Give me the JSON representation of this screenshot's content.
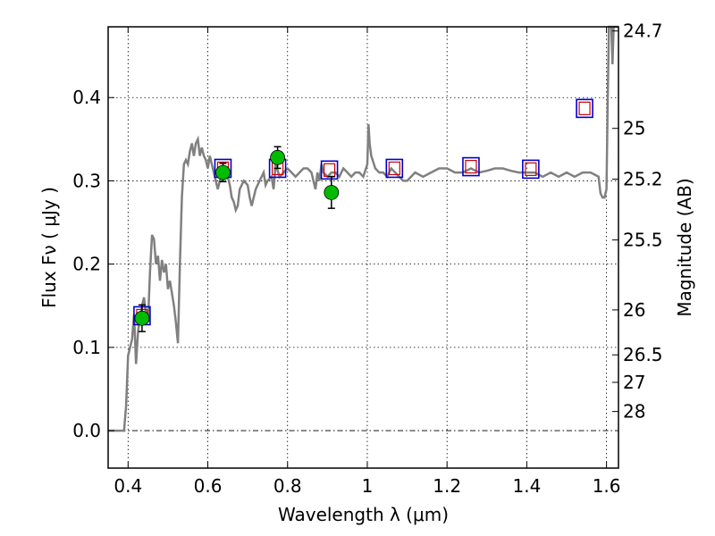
{
  "chart_data": {
    "type": "line",
    "xlabel": "Wavelength  λ (μm)",
    "ylabel": "Flux  Fν  ( μJy )",
    "ylabel_right": "Magnitude (AB)",
    "xlim": [
      0.35,
      1.63
    ],
    "ylim": [
      -0.045,
      0.485
    ],
    "grid": true,
    "x_ticks": [
      {
        "value": 0.4,
        "label": "0.4"
      },
      {
        "value": 0.6,
        "label": "0.6"
      },
      {
        "value": 0.8,
        "label": "0.8"
      },
      {
        "value": 1.0,
        "label": "1"
      },
      {
        "value": 1.2,
        "label": "1.2"
      },
      {
        "value": 1.4,
        "label": "1.4"
      },
      {
        "value": 1.6,
        "label": "1.6"
      }
    ],
    "y_ticks": [
      {
        "value": 0.0,
        "label": "0.0"
      },
      {
        "value": 0.1,
        "label": "0.1"
      },
      {
        "value": 0.2,
        "label": "0.2"
      },
      {
        "value": 0.3,
        "label": "0.3"
      },
      {
        "value": 0.4,
        "label": "0.4"
      }
    ],
    "right_ticks": [
      {
        "flux": 0.48,
        "label": "24.7"
      },
      {
        "flux": 0.363,
        "label": "25"
      },
      {
        "flux": 0.302,
        "label": "25.2"
      },
      {
        "flux": 0.229,
        "label": "25.5"
      },
      {
        "flux": 0.145,
        "label": "26"
      },
      {
        "flux": 0.091,
        "label": "26.5"
      },
      {
        "flux": 0.058,
        "label": "27"
      },
      {
        "flux": 0.023,
        "label": "28"
      }
    ],
    "colors": {
      "model": "#808080",
      "box_blue": "#0000cc",
      "box_red": "#cc0000",
      "observed": "#00bb00"
    },
    "series": [
      {
        "kind": "model-spectrum",
        "points": [
          [
            0.35,
            0.0
          ],
          [
            0.39,
            0.0
          ],
          [
            0.395,
            0.03
          ],
          [
            0.4,
            0.09
          ],
          [
            0.41,
            0.11
          ],
          [
            0.415,
            0.14
          ],
          [
            0.42,
            0.08
          ],
          [
            0.425,
            0.12
          ],
          [
            0.43,
            0.135
          ],
          [
            0.435,
            0.15
          ],
          [
            0.44,
            0.16
          ],
          [
            0.445,
            0.14
          ],
          [
            0.45,
            0.13
          ],
          [
            0.455,
            0.19
          ],
          [
            0.46,
            0.235
          ],
          [
            0.465,
            0.23
          ],
          [
            0.47,
            0.2
          ],
          [
            0.475,
            0.21
          ],
          [
            0.48,
            0.18
          ],
          [
            0.485,
            0.205
          ],
          [
            0.49,
            0.19
          ],
          [
            0.495,
            0.2
          ],
          [
            0.5,
            0.17
          ],
          [
            0.505,
            0.18
          ],
          [
            0.51,
            0.165
          ],
          [
            0.515,
            0.15
          ],
          [
            0.52,
            0.13
          ],
          [
            0.525,
            0.105
          ],
          [
            0.53,
            0.2
          ],
          [
            0.535,
            0.28
          ],
          [
            0.54,
            0.32
          ],
          [
            0.545,
            0.325
          ],
          [
            0.55,
            0.32
          ],
          [
            0.555,
            0.335
          ],
          [
            0.56,
            0.345
          ],
          [
            0.565,
            0.33
          ],
          [
            0.57,
            0.345
          ],
          [
            0.575,
            0.35
          ],
          [
            0.58,
            0.33
          ],
          [
            0.585,
            0.34
          ],
          [
            0.59,
            0.33
          ],
          [
            0.595,
            0.325
          ],
          [
            0.6,
            0.315
          ],
          [
            0.605,
            0.33
          ],
          [
            0.61,
            0.32
          ],
          [
            0.615,
            0.31
          ],
          [
            0.62,
            0.3
          ],
          [
            0.625,
            0.29
          ],
          [
            0.63,
            0.3
          ],
          [
            0.64,
            0.31
          ],
          [
            0.65,
            0.305
          ],
          [
            0.655,
            0.295
          ],
          [
            0.66,
            0.28
          ],
          [
            0.665,
            0.275
          ],
          [
            0.67,
            0.265
          ],
          [
            0.675,
            0.27
          ],
          [
            0.68,
            0.29
          ],
          [
            0.69,
            0.3
          ],
          [
            0.7,
            0.295
          ],
          [
            0.705,
            0.28
          ],
          [
            0.71,
            0.27
          ],
          [
            0.72,
            0.29
          ],
          [
            0.73,
            0.3
          ],
          [
            0.74,
            0.31
          ],
          [
            0.745,
            0.295
          ],
          [
            0.75,
            0.3
          ],
          [
            0.76,
            0.305
          ],
          [
            0.765,
            0.29
          ],
          [
            0.77,
            0.32
          ],
          [
            0.78,
            0.305
          ],
          [
            0.79,
            0.31
          ],
          [
            0.8,
            0.315
          ],
          [
            0.81,
            0.31
          ],
          [
            0.82,
            0.305
          ],
          [
            0.83,
            0.31
          ],
          [
            0.84,
            0.315
          ],
          [
            0.85,
            0.315
          ],
          [
            0.86,
            0.31
          ],
          [
            0.865,
            0.3
          ],
          [
            0.87,
            0.29
          ],
          [
            0.875,
            0.31
          ],
          [
            0.88,
            0.3
          ],
          [
            0.885,
            0.32
          ],
          [
            0.89,
            0.31
          ],
          [
            0.9,
            0.305
          ],
          [
            0.91,
            0.31
          ],
          [
            0.92,
            0.31
          ],
          [
            0.93,
            0.305
          ],
          [
            0.94,
            0.315
          ],
          [
            0.95,
            0.31
          ],
          [
            0.96,
            0.305
          ],
          [
            0.97,
            0.31
          ],
          [
            0.98,
            0.31
          ],
          [
            0.99,
            0.305
          ],
          [
            1.0,
            0.32
          ],
          [
            1.003,
            0.368
          ],
          [
            1.006,
            0.345
          ],
          [
            1.01,
            0.33
          ],
          [
            1.02,
            0.315
          ],
          [
            1.03,
            0.31
          ],
          [
            1.04,
            0.31
          ],
          [
            1.05,
            0.305
          ],
          [
            1.06,
            0.315
          ],
          [
            1.07,
            0.31
          ],
          [
            1.08,
            0.305
          ],
          [
            1.09,
            0.3
          ],
          [
            1.1,
            0.3
          ],
          [
            1.11,
            0.305
          ],
          [
            1.12,
            0.31
          ],
          [
            1.14,
            0.305
          ],
          [
            1.16,
            0.31
          ],
          [
            1.18,
            0.315
          ],
          [
            1.2,
            0.315
          ],
          [
            1.22,
            0.31
          ],
          [
            1.24,
            0.31
          ],
          [
            1.26,
            0.315
          ],
          [
            1.28,
            0.31
          ],
          [
            1.3,
            0.312
          ],
          [
            1.32,
            0.315
          ],
          [
            1.34,
            0.315
          ],
          [
            1.36,
            0.312
          ],
          [
            1.38,
            0.31
          ],
          [
            1.4,
            0.31
          ],
          [
            1.42,
            0.31
          ],
          [
            1.44,
            0.305
          ],
          [
            1.46,
            0.31
          ],
          [
            1.48,
            0.305
          ],
          [
            1.5,
            0.31
          ],
          [
            1.52,
            0.305
          ],
          [
            1.54,
            0.31
          ],
          [
            1.56,
            0.31
          ],
          [
            1.58,
            0.305
          ],
          [
            1.585,
            0.285
          ],
          [
            1.59,
            0.28
          ],
          [
            1.595,
            0.28
          ],
          [
            1.6,
            0.29
          ],
          [
            1.603,
            0.4
          ],
          [
            1.606,
            0.485
          ],
          [
            1.612,
            0.485
          ],
          [
            1.615,
            0.44
          ],
          [
            1.618,
            0.485
          ],
          [
            1.63,
            0.485
          ]
        ]
      },
      {
        "kind": "model-photometry",
        "points": [
          {
            "x": 0.435,
            "y": 0.138
          },
          {
            "x": 0.638,
            "y": 0.315
          },
          {
            "x": 0.775,
            "y": 0.315
          },
          {
            "x": 0.905,
            "y": 0.313
          },
          {
            "x": 1.068,
            "y": 0.315
          },
          {
            "x": 1.26,
            "y": 0.317
          },
          {
            "x": 1.41,
            "y": 0.314
          },
          {
            "x": 1.545,
            "y": 0.387
          }
        ]
      },
      {
        "kind": "observed-photometry",
        "points": [
          {
            "x": 0.435,
            "y": 0.135,
            "err": 0.016
          },
          {
            "x": 0.638,
            "y": 0.31,
            "err": 0.011
          },
          {
            "x": 0.775,
            "y": 0.328,
            "err": 0.013
          },
          {
            "x": 0.91,
            "y": 0.286,
            "err": 0.019
          }
        ]
      }
    ]
  }
}
